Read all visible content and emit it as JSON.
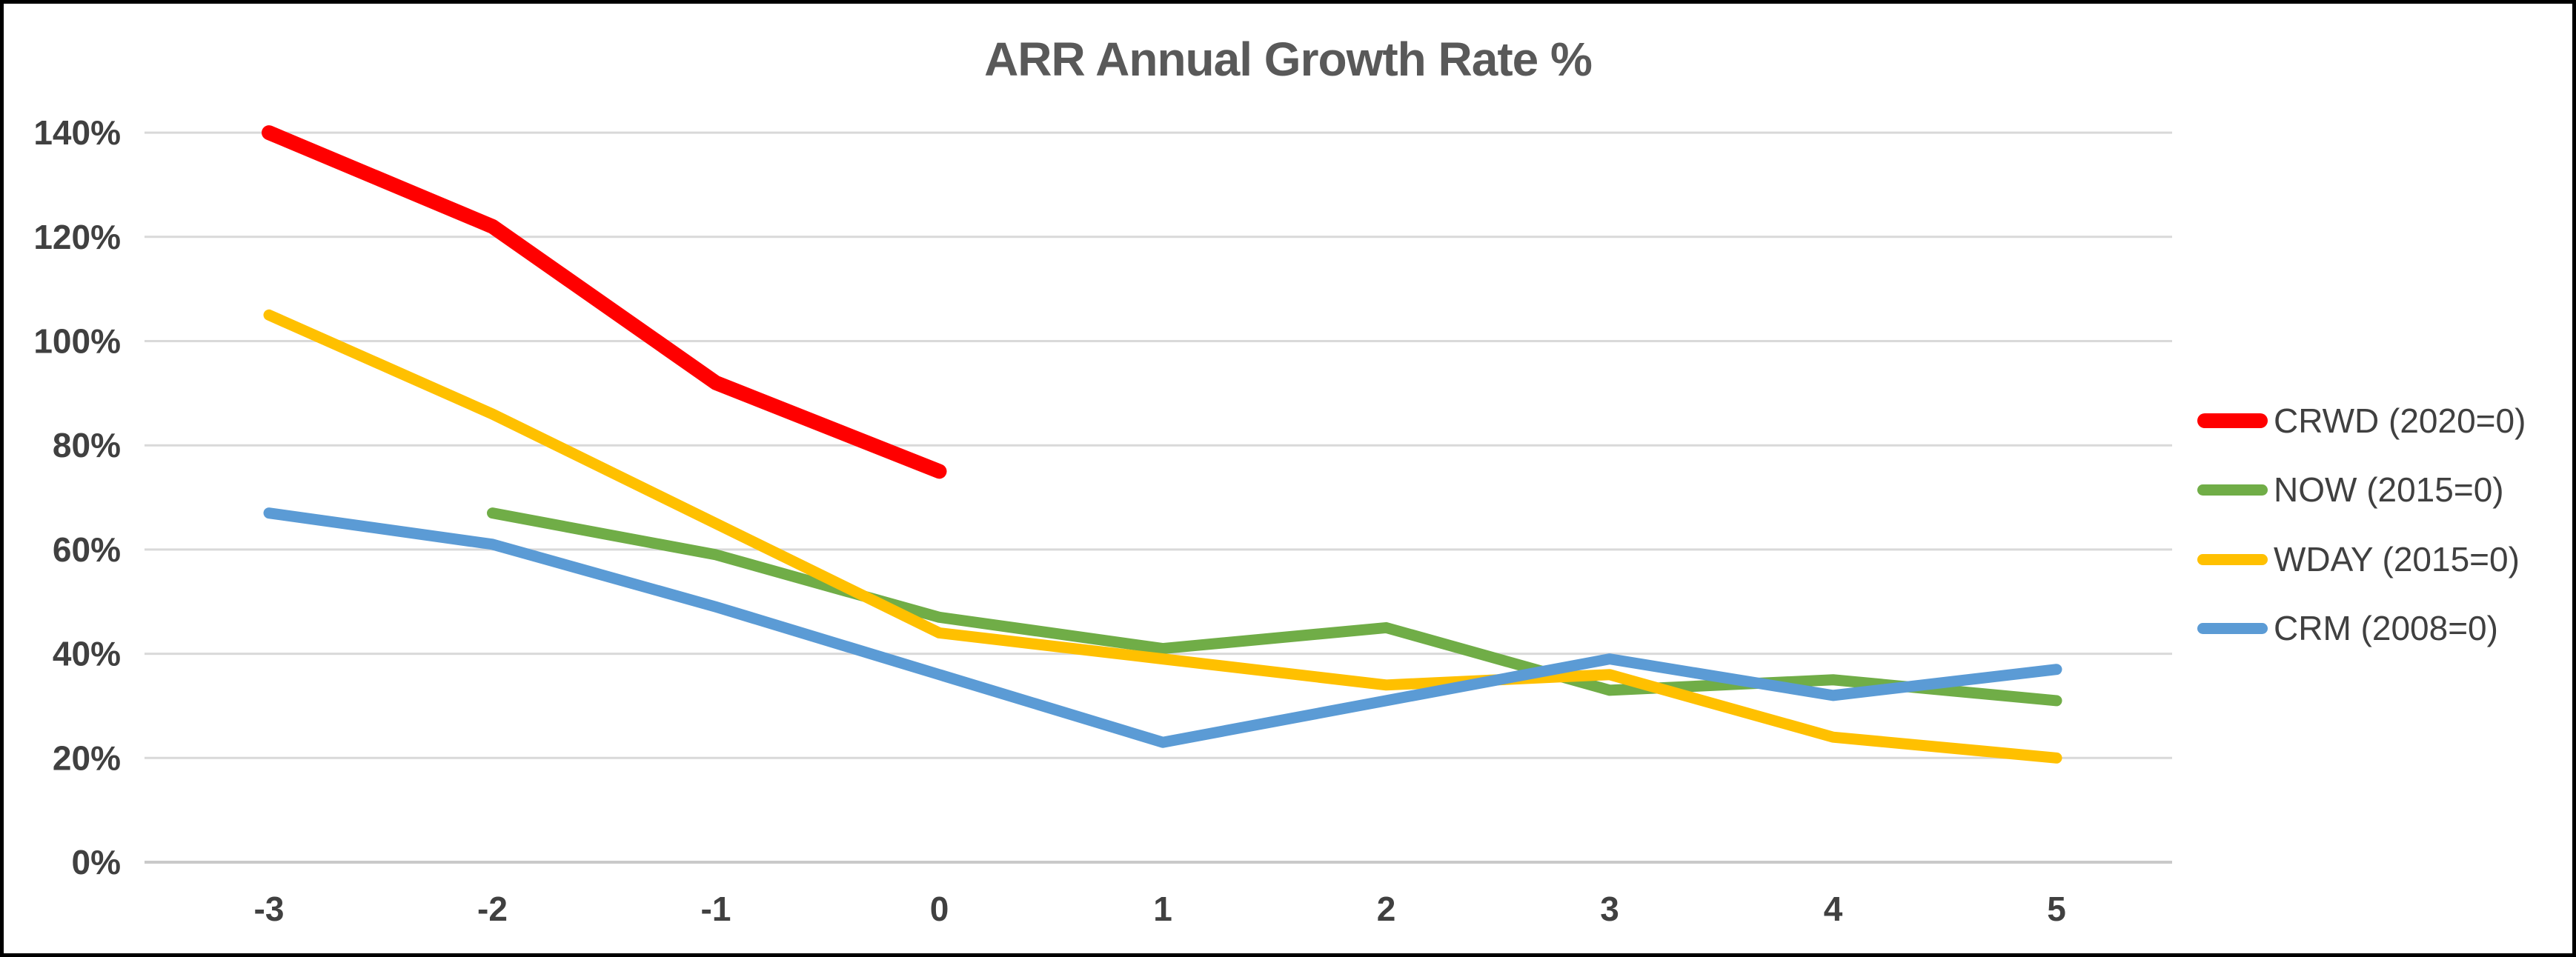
{
  "chart_title": "ARR Annual Growth Rate %",
  "chart_data": {
    "type": "line",
    "title": "ARR Annual Growth Rate %",
    "xlabel": "",
    "ylabel": "",
    "x_categories": [
      -3,
      -2,
      -1,
      0,
      1,
      2,
      3,
      4,
      5
    ],
    "x_tick_labels": [
      "-3",
      "-2",
      "-1",
      "0",
      "1",
      "2",
      "3",
      "4",
      "5"
    ],
    "y_ticks": [
      0,
      20,
      40,
      60,
      80,
      100,
      120,
      140
    ],
    "y_tick_labels": [
      "0%",
      "20%",
      "40%",
      "60%",
      "80%",
      "100%",
      "120%",
      "140%"
    ],
    "ylim": [
      0,
      140
    ],
    "grid": "horizontal-only",
    "legend_position": "right",
    "series": [
      {
        "name": "CRWD (2020=0)",
        "color": "#FF0000",
        "x_start": -3,
        "values": [
          140,
          122,
          92,
          75
        ]
      },
      {
        "name": "NOW (2015=0)",
        "color": "#70AD47",
        "x_start": -2,
        "values": [
          67,
          59,
          47,
          41,
          45,
          33,
          35,
          31
        ]
      },
      {
        "name": "WDAY (2015=0)",
        "color": "#FFC000",
        "x_start": -3,
        "values": [
          105,
          86,
          65,
          44,
          39,
          34,
          36,
          24,
          20
        ]
      },
      {
        "name": "CRM (2008=0)",
        "color": "#5B9BD5",
        "x_start": -3,
        "values": [
          67,
          61,
          49,
          36,
          23,
          31,
          39,
          32,
          37
        ]
      }
    ]
  },
  "style": {
    "gridline_color": "#D9D9D9",
    "axis_line_color": "#C9C9C9",
    "axis_text_color": "#404040",
    "title_color": "#595959",
    "background_color": "#FFFFFF",
    "border_color": "#000000"
  }
}
